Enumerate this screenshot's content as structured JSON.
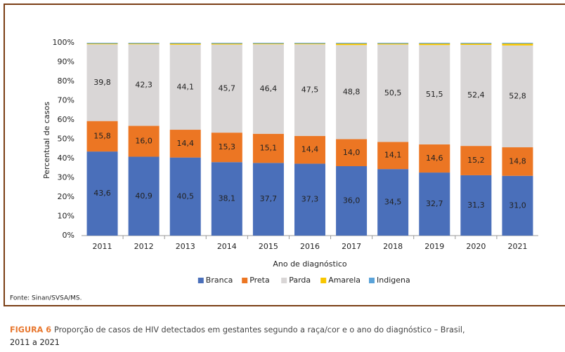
{
  "chart_data": {
    "type": "stacked_bar",
    "categories": [
      "2011",
      "2012",
      "2013",
      "2014",
      "2015",
      "2016",
      "2017",
      "2018",
      "2019",
      "2020",
      "2021"
    ],
    "series": [
      {
        "name": "Branca",
        "color": "#4a6fba",
        "values": [
          43.6,
          40.9,
          40.5,
          38.1,
          37.7,
          37.3,
          36.0,
          34.5,
          32.7,
          31.3,
          31.0
        ],
        "value_labels": [
          "43,6",
          "40,9",
          "40,5",
          "38,1",
          "37,7",
          "37,3",
          "36,0",
          "34,5",
          "32,7",
          "31,3",
          "31,0"
        ]
      },
      {
        "name": "Preta",
        "color": "#ec7623",
        "values": [
          15.8,
          16.0,
          14.4,
          15.3,
          15.1,
          14.4,
          14.0,
          14.1,
          14.6,
          15.2,
          14.8
        ],
        "value_labels": [
          "15,8",
          "16,0",
          "14,4",
          "15,3",
          "15,1",
          "14,4",
          "14,0",
          "14,1",
          "14,6",
          "15,2",
          "14,8"
        ]
      },
      {
        "name": "Parda",
        "color": "#d9d6d6",
        "values": [
          39.8,
          42.3,
          44.1,
          45.7,
          46.4,
          47.5,
          48.8,
          50.5,
          51.5,
          52.4,
          52.8
        ],
        "value_labels": [
          "39,8",
          "42,3",
          "44,1",
          "45,7",
          "46,4",
          "47,5",
          "48,8",
          "50,5",
          "51,5",
          "52,4",
          "52,8"
        ]
      },
      {
        "name": "Amarela",
        "color": "#f8c600",
        "values": [
          0.4,
          0.4,
          0.6,
          0.5,
          0.4,
          0.4,
          0.8,
          0.5,
          0.8,
          0.7,
          1.0
        ]
      },
      {
        "name": "Indigena",
        "color": "#5ba3d9",
        "values": [
          0.4,
          0.4,
          0.4,
          0.4,
          0.4,
          0.4,
          0.4,
          0.4,
          0.4,
          0.4,
          0.4
        ]
      }
    ],
    "ylim": [
      0,
      100
    ],
    "yticks": [
      {
        "value": 0,
        "label": "0%"
      },
      {
        "value": 10,
        "label": "10%"
      },
      {
        "value": 20,
        "label": "20%"
      },
      {
        "value": 30,
        "label": "30%"
      },
      {
        "value": 40,
        "label": "40%"
      },
      {
        "value": 50,
        "label": "50%"
      },
      {
        "value": 60,
        "label": "60%"
      },
      {
        "value": 70,
        "label": "70%"
      },
      {
        "value": 80,
        "label": "80%"
      },
      {
        "value": 90,
        "label": "90%"
      },
      {
        "value": 100,
        "label": "100%"
      }
    ],
    "ylabel": "Percentual de casos",
    "xlabel": "Ano de diagnóstico",
    "grid": false,
    "legend": "bottom"
  },
  "source": "Fonte: Sinan/SVSA/MS.",
  "caption": {
    "label": "FIGURA 6",
    "lines": [
      "Proporção de casos de HIV detectados em gestantes segundo a raça/cor e o ano do diagnóstico – Brasil,",
      "2011 a 2021"
    ]
  }
}
